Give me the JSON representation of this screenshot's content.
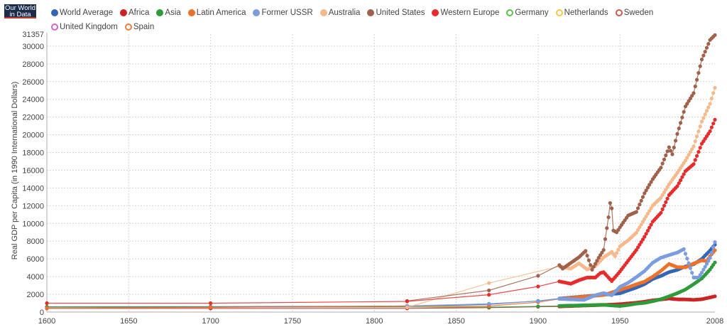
{
  "logo": {
    "line1": "Our World",
    "line2": "in Data"
  },
  "chart_data": {
    "type": "line",
    "title": "",
    "xlabel": "",
    "ylabel": "Real GDP per Capita (in 1990 International Dollars)",
    "xlim": [
      1600,
      2008
    ],
    "ylim": [
      0,
      31357
    ],
    "x_ticks": [
      1600,
      1650,
      1700,
      1750,
      1800,
      1850,
      1900,
      1950,
      2008
    ],
    "y_ticks": [
      0,
      2000,
      4000,
      6000,
      8000,
      10000,
      12000,
      14000,
      16000,
      18000,
      20000,
      22000,
      24000,
      26000,
      28000,
      30000,
      31357
    ],
    "grid": true,
    "legend_position": "top",
    "series": [
      {
        "name": "World Average",
        "color": "#3366b5",
        "marker": "filled",
        "points": [
          [
            1600,
            595
          ],
          [
            1700,
            615
          ],
          [
            1820,
            667
          ],
          [
            1870,
            873
          ],
          [
            1900,
            1262
          ],
          [
            1913,
            1526
          ],
          [
            1940,
            1958
          ],
          [
            1950,
            2113
          ],
          [
            1955,
            2450
          ],
          [
            1960,
            2770
          ],
          [
            1965,
            3150
          ],
          [
            1970,
            3730
          ],
          [
            1975,
            4080
          ],
          [
            1980,
            4510
          ],
          [
            1985,
            4760
          ],
          [
            1990,
            5150
          ],
          [
            1995,
            5400
          ],
          [
            2000,
            6000
          ],
          [
            2005,
            6950
          ],
          [
            2008,
            7600
          ]
        ]
      },
      {
        "name": "Africa",
        "color": "#cc2222",
        "marker": "filled",
        "points": [
          [
            1600,
            420
          ],
          [
            1700,
            420
          ],
          [
            1820,
            420
          ],
          [
            1870,
            500
          ],
          [
            1900,
            601
          ],
          [
            1913,
            637
          ],
          [
            1940,
            813
          ],
          [
            1950,
            889
          ],
          [
            1955,
            980
          ],
          [
            1960,
            1060
          ],
          [
            1965,
            1170
          ],
          [
            1970,
            1330
          ],
          [
            1975,
            1420
          ],
          [
            1980,
            1530
          ],
          [
            1985,
            1440
          ],
          [
            1990,
            1430
          ],
          [
            1995,
            1380
          ],
          [
            2000,
            1450
          ],
          [
            2005,
            1650
          ],
          [
            2008,
            1780
          ]
        ]
      },
      {
        "name": "Asia",
        "color": "#2e9b3a",
        "marker": "filled",
        "points": [
          [
            1600,
            570
          ],
          [
            1700,
            570
          ],
          [
            1820,
            580
          ],
          [
            1870,
            550
          ],
          [
            1900,
            640
          ],
          [
            1913,
            700
          ],
          [
            1940,
            820
          ],
          [
            1950,
            680
          ],
          [
            1955,
            800
          ],
          [
            1960,
            950
          ],
          [
            1965,
            1040
          ],
          [
            1970,
            1230
          ],
          [
            1975,
            1450
          ],
          [
            1980,
            1770
          ],
          [
            1985,
            2130
          ],
          [
            1990,
            2550
          ],
          [
            1995,
            3150
          ],
          [
            2000,
            3800
          ],
          [
            2005,
            4800
          ],
          [
            2008,
            5600
          ]
        ]
      },
      {
        "name": "Latin America",
        "color": "#ee7029",
        "marker": "filled",
        "points": [
          [
            1600,
            438
          ],
          [
            1700,
            527
          ],
          [
            1820,
            692
          ],
          [
            1870,
            681
          ],
          [
            1900,
            1113
          ],
          [
            1913,
            1481
          ],
          [
            1940,
            1930
          ],
          [
            1950,
            2503
          ],
          [
            1955,
            2800
          ],
          [
            1960,
            3130
          ],
          [
            1965,
            3430
          ],
          [
            1970,
            3990
          ],
          [
            1975,
            4650
          ],
          [
            1980,
            5430
          ],
          [
            1985,
            5070
          ],
          [
            1990,
            5050
          ],
          [
            1995,
            5480
          ],
          [
            2000,
            5840
          ],
          [
            2003,
            5750
          ],
          [
            2005,
            6300
          ],
          [
            2008,
            6970
          ]
        ]
      },
      {
        "name": "Former USSR",
        "color": "#7b9de0",
        "marker": "filled",
        "points": [
          [
            1820,
            688
          ],
          [
            1870,
            943
          ],
          [
            1900,
            1237
          ],
          [
            1913,
            1488
          ],
          [
            1928,
            1370
          ],
          [
            1935,
            1900
          ],
          [
            1940,
            2144
          ],
          [
            1945,
            1900
          ],
          [
            1950,
            2841
          ],
          [
            1955,
            3310
          ],
          [
            1960,
            3945
          ],
          [
            1965,
            4630
          ],
          [
            1970,
            5575
          ],
          [
            1975,
            6135
          ],
          [
            1980,
            6430
          ],
          [
            1985,
            6710
          ],
          [
            1989,
            7110
          ],
          [
            1992,
            5500
          ],
          [
            1995,
            3900
          ],
          [
            1998,
            3900
          ],
          [
            2000,
            4450
          ],
          [
            2005,
            6100
          ],
          [
            2008,
            7900
          ]
        ]
      },
      {
        "name": "Australia",
        "color": "#f7b98c",
        "marker": "filled",
        "points": [
          [
            1820,
            518
          ],
          [
            1870,
            3273
          ],
          [
            1913,
            5157
          ],
          [
            1920,
            4900
          ],
          [
            1925,
            5500
          ],
          [
            1930,
            4800
          ],
          [
            1935,
            5200
          ],
          [
            1940,
            6166
          ],
          [
            1945,
            6800
          ],
          [
            1947,
            6300
          ],
          [
            1950,
            7412
          ],
          [
            1955,
            8100
          ],
          [
            1960,
            8950
          ],
          [
            1965,
            10500
          ],
          [
            1970,
            12024
          ],
          [
            1975,
            12900
          ],
          [
            1980,
            14400
          ],
          [
            1985,
            15700
          ],
          [
            1990,
            17100
          ],
          [
            1995,
            18700
          ],
          [
            2000,
            21500
          ],
          [
            2005,
            23500
          ],
          [
            2008,
            25300
          ]
        ]
      },
      {
        "name": "United States",
        "color": "#a0604a",
        "marker": "filled",
        "points": [
          [
            1820,
            1257
          ],
          [
            1870,
            2445
          ],
          [
            1900,
            4091
          ],
          [
            1913,
            5301
          ],
          [
            1915,
            4900
          ],
          [
            1920,
            5550
          ],
          [
            1925,
            6200
          ],
          [
            1929,
            6899
          ],
          [
            1933,
            4777
          ],
          [
            1937,
            6129
          ],
          [
            1940,
            7010
          ],
          [
            1943,
            10700
          ],
          [
            1944,
            12300
          ],
          [
            1945,
            11700
          ],
          [
            1946,
            9200
          ],
          [
            1948,
            9000
          ],
          [
            1950,
            9561
          ],
          [
            1955,
            10900
          ],
          [
            1960,
            11300
          ],
          [
            1965,
            13400
          ],
          [
            1970,
            15000
          ],
          [
            1975,
            16300
          ],
          [
            1980,
            18600
          ],
          [
            1982,
            17800
          ],
          [
            1985,
            20100
          ],
          [
            1990,
            23200
          ],
          [
            1995,
            24700
          ],
          [
            2000,
            28500
          ],
          [
            2005,
            30700
          ],
          [
            2008,
            31250
          ]
        ]
      },
      {
        "name": "Western Europe",
        "color": "#e82b2b",
        "marker": "filled",
        "points": [
          [
            1600,
            1000
          ],
          [
            1700,
            1000
          ],
          [
            1820,
            1200
          ],
          [
            1870,
            1960
          ],
          [
            1900,
            2890
          ],
          [
            1913,
            3460
          ],
          [
            1920,
            3200
          ],
          [
            1925,
            3600
          ],
          [
            1930,
            3900
          ],
          [
            1935,
            3900
          ],
          [
            1938,
            4400
          ],
          [
            1940,
            4500
          ],
          [
            1945,
            3500
          ],
          [
            1950,
            4579
          ],
          [
            1955,
            5800
          ],
          [
            1960,
            7000
          ],
          [
            1965,
            8500
          ],
          [
            1970,
            10200
          ],
          [
            1975,
            11200
          ],
          [
            1980,
            13200
          ],
          [
            1985,
            14200
          ],
          [
            1990,
            15900
          ],
          [
            1995,
            16700
          ],
          [
            2000,
            19000
          ],
          [
            2005,
            20400
          ],
          [
            2008,
            21700
          ]
        ]
      },
      {
        "name": "Germany",
        "color": "#5cbf4c",
        "marker": "hollow",
        "points": []
      },
      {
        "name": "Netherlands",
        "color": "#f5c842",
        "marker": "hollow",
        "points": []
      },
      {
        "name": "Sweden",
        "color": "#c0604c",
        "marker": "hollow",
        "points": []
      },
      {
        "name": "United Kingdom",
        "color": "#cc66cc",
        "marker": "hollow",
        "points": []
      },
      {
        "name": "Spain",
        "color": "#e8803c",
        "marker": "hollow",
        "points": []
      }
    ]
  }
}
